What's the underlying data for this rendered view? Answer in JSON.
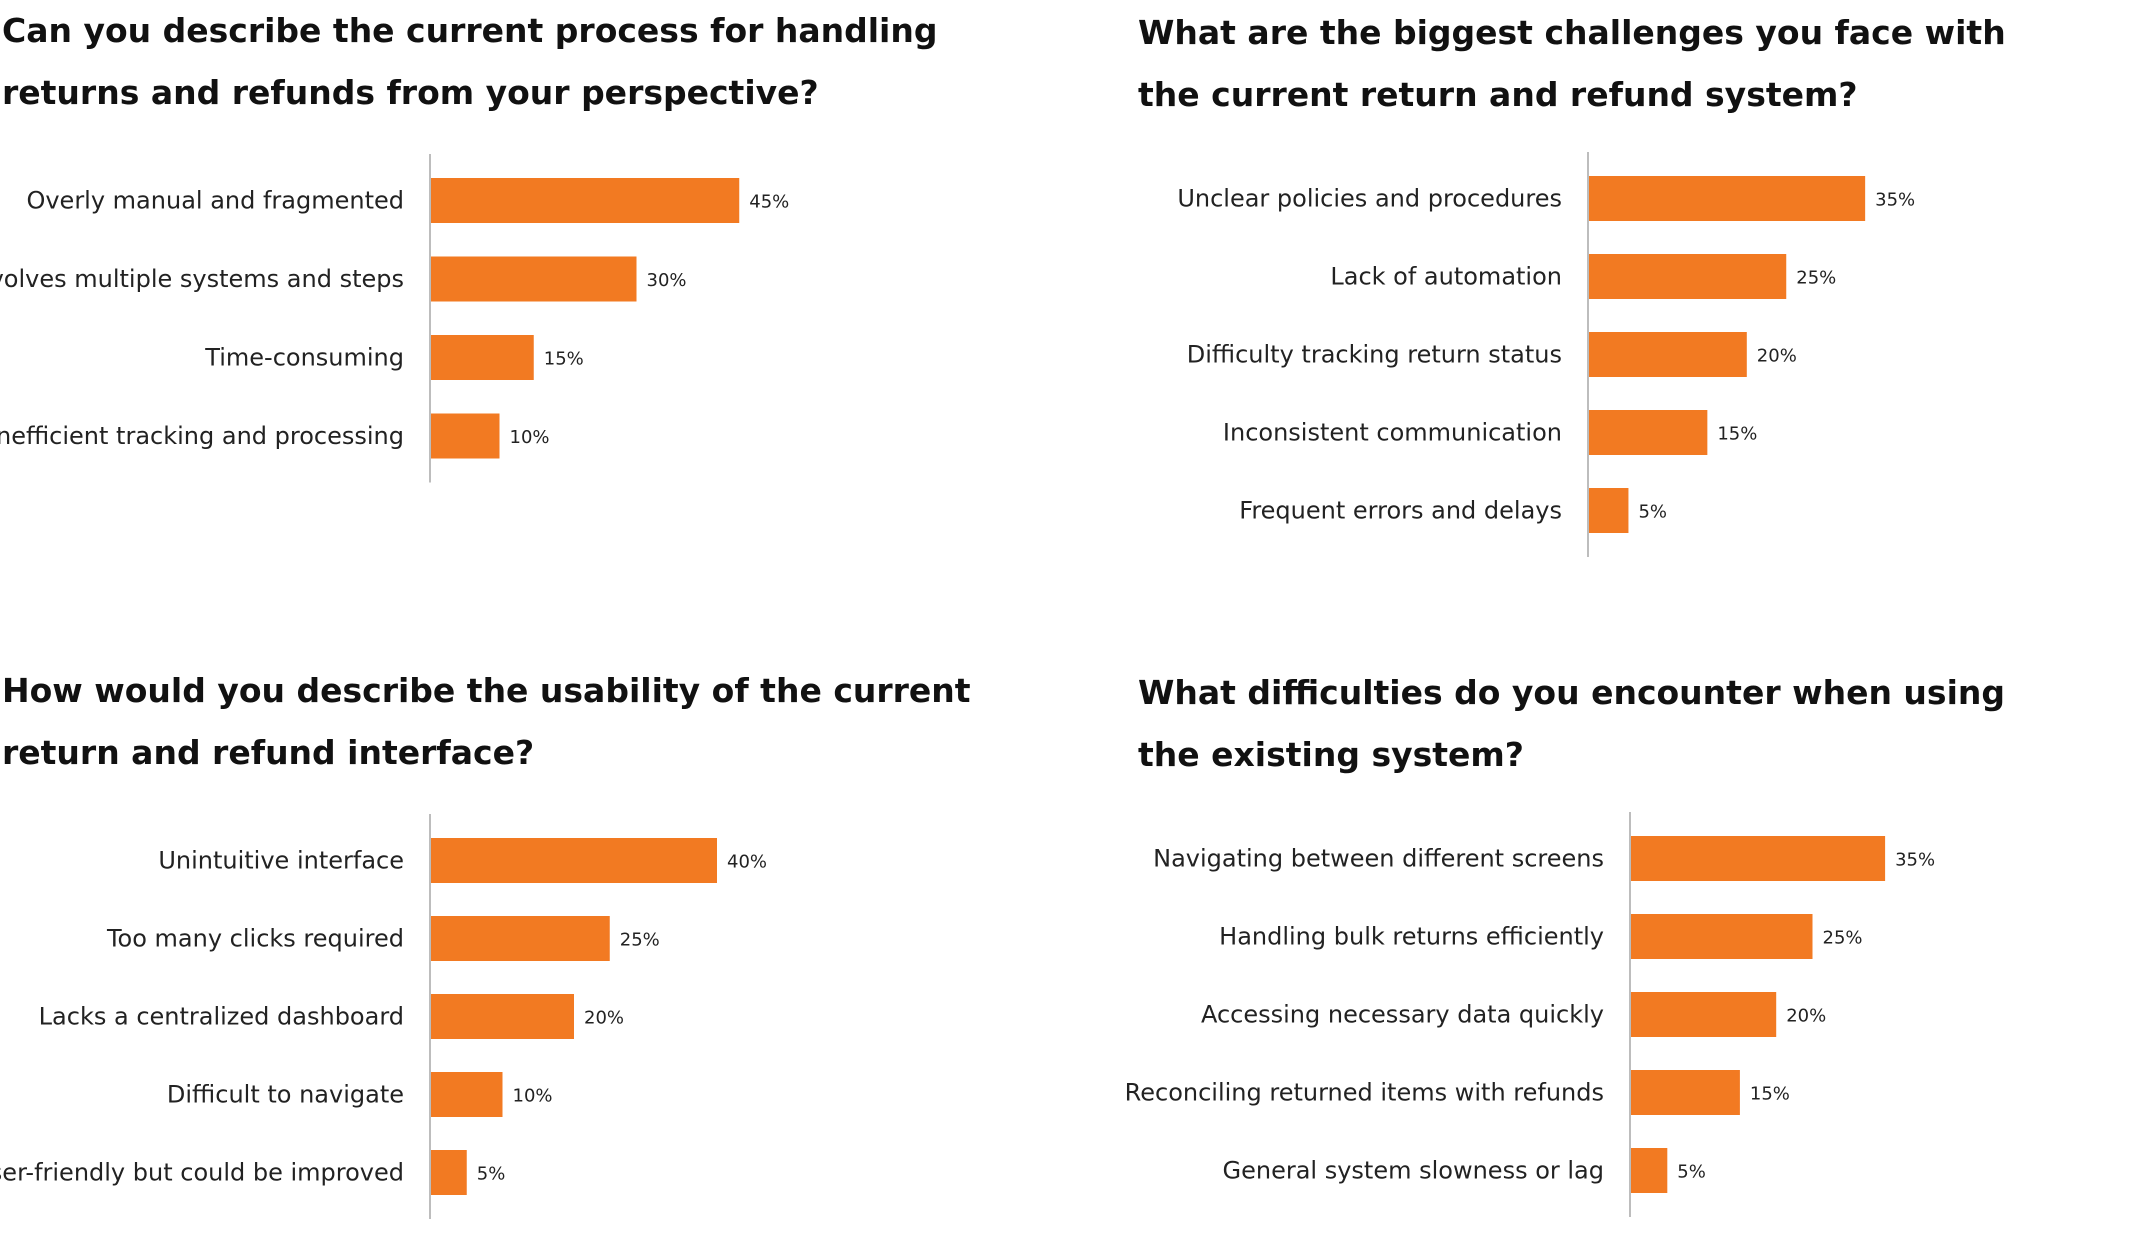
{
  "colors": {
    "bar": "#F27A22",
    "axis": "#bdbdbd",
    "text": "#222222"
  },
  "chart_data": [
    {
      "type": "bar",
      "orientation": "horizontal",
      "title": "Can you describe the current process for handling returns and refunds from your perspective?",
      "categories": [
        "Overly manual and fragmented",
        "Involves multiple systems and steps",
        "Time-consuming",
        "Inefficient tracking and processing"
      ],
      "values": [
        45,
        30,
        15,
        10
      ],
      "value_labels": [
        "45%",
        "30%",
        "15%",
        "10%"
      ],
      "unit": "%",
      "xlim": [
        0,
        100
      ],
      "grid": false,
      "legend": "none"
    },
    {
      "type": "bar",
      "orientation": "horizontal",
      "title": "What are the biggest challenges you face with the current return and refund system?",
      "categories": [
        "Unclear policies and procedures",
        "Lack of automation",
        "Difficulty tracking return status",
        "Inconsistent communication",
        "Frequent errors and delays"
      ],
      "values": [
        35,
        25,
        20,
        15,
        5
      ],
      "value_labels": [
        "35%",
        "25%",
        "20%",
        "15%",
        "5%"
      ],
      "unit": "%",
      "xlim": [
        0,
        100
      ],
      "grid": false,
      "legend": "none"
    },
    {
      "type": "bar",
      "orientation": "horizontal",
      "title": "How would you describe the usability of the current return and refund interface?",
      "categories": [
        "Unintuitive interface",
        "Too many clicks required",
        "Lacks a centralized dashboard",
        "Difficult to navigate",
        "User-friendly but could be improved"
      ],
      "values": [
        40,
        25,
        20,
        10,
        5
      ],
      "value_labels": [
        "40%",
        "25%",
        "20%",
        "10%",
        "5%"
      ],
      "unit": "%",
      "xlim": [
        0,
        100
      ],
      "grid": false,
      "legend": "none"
    },
    {
      "type": "bar",
      "orientation": "horizontal",
      "title": "What difficulties do you encounter when using the existing system?",
      "categories": [
        "Navigating between different screens",
        "Handling bulk returns efficiently",
        "Accessing necessary data quickly",
        "Reconciling returned items with refunds",
        "General system slowness or lag"
      ],
      "values": [
        35,
        25,
        20,
        15,
        5
      ],
      "value_labels": [
        "35%",
        "25%",
        "20%",
        "15%",
        "5%"
      ],
      "unit": "%",
      "xlim": [
        0,
        100
      ],
      "grid": false,
      "legend": "none"
    }
  ]
}
